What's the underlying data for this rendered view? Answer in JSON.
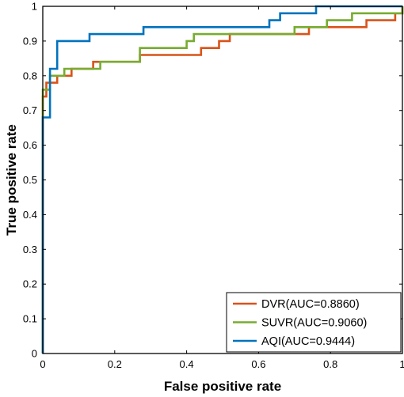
{
  "chart_data": {
    "type": "line",
    "title": "",
    "xlabel": "False positive rate",
    "ylabel": "True positive rate",
    "xlim": [
      0,
      1
    ],
    "ylim": [
      0,
      1
    ],
    "x_ticks": [
      "0",
      "0.2",
      "0.4",
      "0.6",
      "0.8",
      "1"
    ],
    "y_ticks": [
      "0",
      "0.1",
      "0.2",
      "0.3",
      "0.4",
      "0.5",
      "0.6",
      "0.7",
      "0.8",
      "0.9",
      "1"
    ],
    "grid": false,
    "legend_position": "bottom-right",
    "series": [
      {
        "name": "DVR(AUC=0.8860)",
        "color": "#d95319",
        "points": [
          [
            0,
            0
          ],
          [
            0,
            0.74
          ],
          [
            0.01,
            0.74
          ],
          [
            0.01,
            0.78
          ],
          [
            0.04,
            0.78
          ],
          [
            0.04,
            0.8
          ],
          [
            0.08,
            0.8
          ],
          [
            0.08,
            0.82
          ],
          [
            0.14,
            0.82
          ],
          [
            0.14,
            0.84
          ],
          [
            0.27,
            0.84
          ],
          [
            0.27,
            0.86
          ],
          [
            0.44,
            0.86
          ],
          [
            0.44,
            0.88
          ],
          [
            0.49,
            0.88
          ],
          [
            0.49,
            0.9
          ],
          [
            0.52,
            0.9
          ],
          [
            0.52,
            0.92
          ],
          [
            0.74,
            0.92
          ],
          [
            0.74,
            0.94
          ],
          [
            0.9,
            0.94
          ],
          [
            0.9,
            0.96
          ],
          [
            0.98,
            0.96
          ],
          [
            0.98,
            0.98
          ],
          [
            1,
            0.98
          ],
          [
            1,
            1
          ]
        ]
      },
      {
        "name": "SUVR(AUC=0.9060)",
        "color": "#77ac30",
        "points": [
          [
            0,
            0
          ],
          [
            0,
            0.76
          ],
          [
            0.02,
            0.76
          ],
          [
            0.02,
            0.8
          ],
          [
            0.06,
            0.8
          ],
          [
            0.06,
            0.82
          ],
          [
            0.16,
            0.82
          ],
          [
            0.16,
            0.84
          ],
          [
            0.27,
            0.84
          ],
          [
            0.27,
            0.88
          ],
          [
            0.4,
            0.88
          ],
          [
            0.4,
            0.9
          ],
          [
            0.42,
            0.9
          ],
          [
            0.42,
            0.92
          ],
          [
            0.7,
            0.92
          ],
          [
            0.7,
            0.94
          ],
          [
            0.79,
            0.94
          ],
          [
            0.79,
            0.96
          ],
          [
            0.86,
            0.96
          ],
          [
            0.86,
            0.98
          ],
          [
            1,
            0.98
          ],
          [
            1,
            1
          ]
        ]
      },
      {
        "name": "AQI(AUC=0.9444)",
        "color": "#0072bd",
        "points": [
          [
            0,
            0
          ],
          [
            0,
            0.68
          ],
          [
            0.02,
            0.68
          ],
          [
            0.02,
            0.82
          ],
          [
            0.04,
            0.82
          ],
          [
            0.04,
            0.9
          ],
          [
            0.13,
            0.9
          ],
          [
            0.13,
            0.92
          ],
          [
            0.28,
            0.92
          ],
          [
            0.28,
            0.94
          ],
          [
            0.63,
            0.94
          ],
          [
            0.63,
            0.96
          ],
          [
            0.66,
            0.96
          ],
          [
            0.66,
            0.98
          ],
          [
            0.76,
            0.98
          ],
          [
            0.76,
            1
          ],
          [
            1,
            1
          ]
        ]
      }
    ]
  }
}
